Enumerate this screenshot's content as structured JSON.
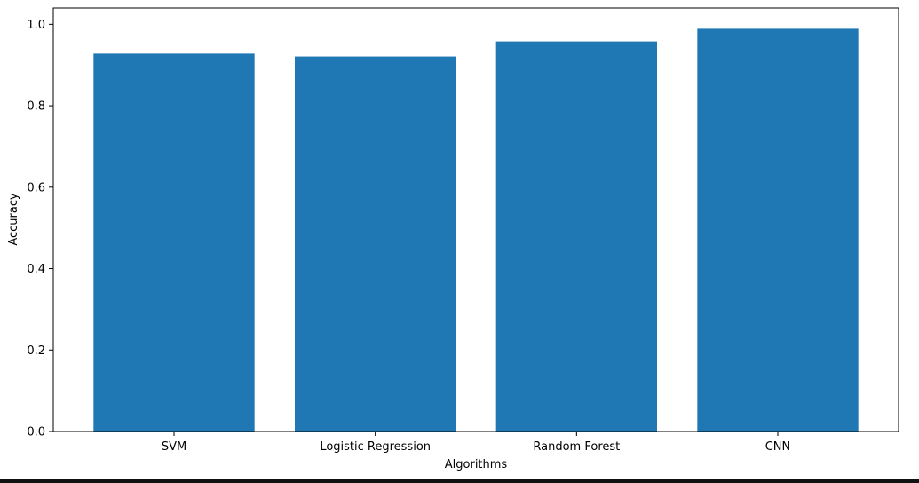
{
  "chart_data": {
    "type": "bar",
    "title": "",
    "xlabel": "Algorithms",
    "ylabel": "Accuracy",
    "categories": [
      "SVM",
      "Logistic Regression",
      "Random Forest",
      "CNN"
    ],
    "values": [
      0.928,
      0.921,
      0.958,
      0.989
    ],
    "ylim": [
      0,
      1.04
    ],
    "yticks": [
      "0.0",
      "0.2",
      "0.4",
      "0.6",
      "0.8",
      "1.0"
    ],
    "grid": false,
    "legend": "none",
    "bar_color": "#1f77b4"
  }
}
